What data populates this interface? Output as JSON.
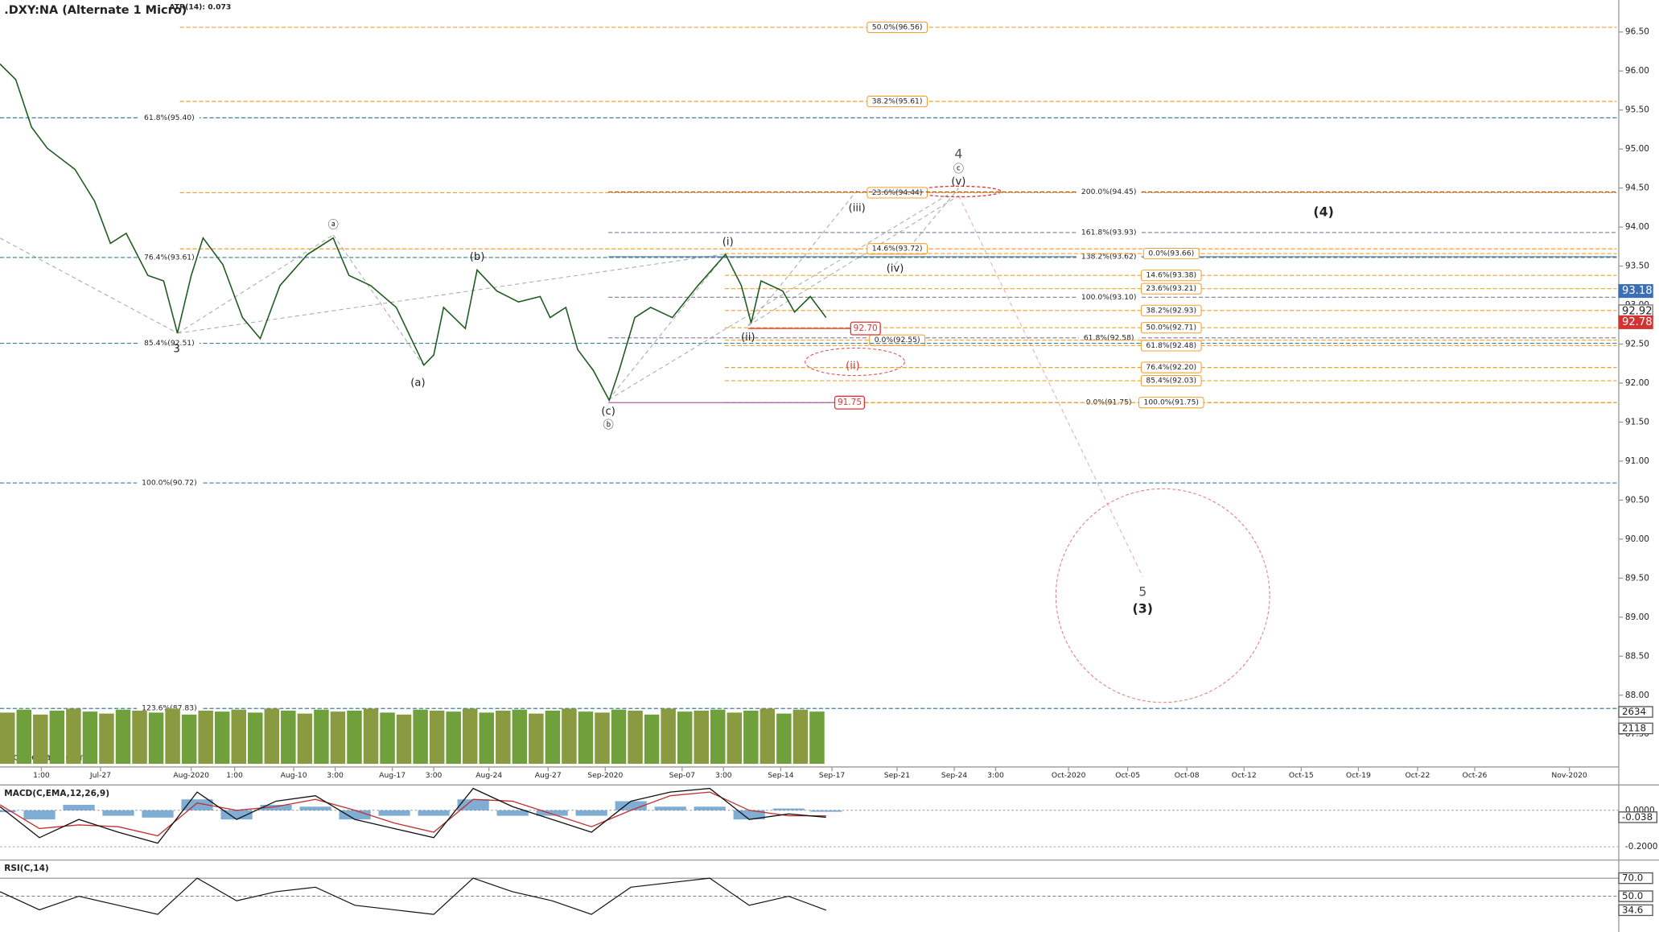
{
  "chart_data": {
    "type": "line",
    "title": ".DXY:NA (Alternate 1 Micro)",
    "indicator": "ATR(14): 0.073",
    "watermark": "motivewave.com",
    "xlim": [
      0,
      82
    ],
    "xticks": [
      {
        "value": 2.1,
        "label": "1:00"
      },
      {
        "value": 5.1,
        "label": "Jul-27"
      },
      {
        "value": 9.7,
        "label": "Aug-2020"
      },
      {
        "value": 11.9,
        "label": "1:00"
      },
      {
        "value": 14.9,
        "label": "Aug-10"
      },
      {
        "value": 17.0,
        "label": "3:00"
      },
      {
        "value": 19.9,
        "label": "Aug-17"
      },
      {
        "value": 22.0,
        "label": "3:00"
      },
      {
        "value": 24.8,
        "label": "Aug-24"
      },
      {
        "value": 27.8,
        "label": "Aug-27"
      },
      {
        "value": 30.7,
        "label": "Sep-2020"
      },
      {
        "value": 34.6,
        "label": "Sep-07"
      },
      {
        "value": 36.7,
        "label": "3:00"
      },
      {
        "value": 39.6,
        "label": "Sep-14"
      },
      {
        "value": 42.2,
        "label": "Sep-17"
      },
      {
        "value": 45.5,
        "label": "Sep-21"
      },
      {
        "value": 48.4,
        "label": "Sep-24"
      },
      {
        "value": 50.5,
        "label": "3:00"
      },
      {
        "value": 54.2,
        "label": "Oct-2020"
      },
      {
        "value": 57.2,
        "label": "Oct-05"
      },
      {
        "value": 60.2,
        "label": "Oct-08"
      },
      {
        "value": 63.1,
        "label": "Oct-12"
      },
      {
        "value": 66.0,
        "label": "Oct-15"
      },
      {
        "value": 68.9,
        "label": "Oct-19"
      },
      {
        "value": 71.9,
        "label": "Oct-22"
      },
      {
        "value": 74.8,
        "label": "Oct-26"
      },
      {
        "value": 79.6,
        "label": "Nov-2020"
      }
    ],
    "ylim": [
      87.08,
      96.91
    ],
    "yticks": [
      {
        "value": 87.5,
        "label": "87.50"
      },
      {
        "value": 88.0,
        "label": "88.00"
      },
      {
        "value": 88.5,
        "label": "88.50"
      },
      {
        "value": 89.0,
        "label": "89.00"
      },
      {
        "value": 89.5,
        "label": "89.50"
      },
      {
        "value": 90.0,
        "label": "90.00"
      },
      {
        "value": 90.5,
        "label": "90.50"
      },
      {
        "value": 91.0,
        "label": "91.00"
      },
      {
        "value": 91.5,
        "label": "91.50"
      },
      {
        "value": 92.0,
        "label": "92.00"
      },
      {
        "value": 92.5,
        "label": "92.50"
      },
      {
        "value": 93.0,
        "label": "93.00"
      },
      {
        "value": 93.5,
        "label": "93.50"
      },
      {
        "value": 94.0,
        "label": "94.00"
      },
      {
        "value": 94.5,
        "label": "94.50"
      },
      {
        "value": 95.0,
        "label": "95.00"
      },
      {
        "value": 95.5,
        "label": "95.50"
      },
      {
        "value": 96.0,
        "label": "96.00"
      },
      {
        "value": 96.5,
        "label": "96.50"
      }
    ],
    "series": [
      {
        "name": "DXY",
        "color": "#1f5a1f",
        "x": [
          0,
          0.8,
          1.6,
          2.4,
          3.8,
          4.8,
          5.6,
          6.4,
          7.5,
          8.3,
          9.0,
          9.7,
          10.3,
          11.3,
          12.3,
          13.2,
          14.2,
          15.6,
          16.9,
          17.7,
          18.8,
          20.1,
          21.5,
          22.0,
          22.5,
          23.6,
          24.2,
          25.2,
          26.3,
          27.4,
          27.9,
          28.7,
          29.3,
          30.1,
          30.9,
          31.4,
          32.2,
          33.0,
          34.1,
          35.4,
          36.8,
          37.6,
          38.1,
          38.6,
          39.7,
          40.3,
          41.1,
          41.9
        ],
        "values": [
          96.09,
          95.89,
          95.28,
          95.01,
          94.74,
          94.33,
          93.79,
          93.92,
          93.38,
          93.31,
          92.64,
          93.38,
          93.86,
          93.52,
          92.84,
          92.57,
          93.25,
          93.65,
          93.86,
          93.38,
          93.25,
          92.97,
          92.23,
          92.36,
          92.97,
          92.7,
          93.45,
          93.18,
          93.04,
          93.11,
          92.84,
          92.97,
          92.43,
          92.16,
          91.78,
          92.16,
          92.84,
          92.97,
          92.84,
          93.25,
          93.65,
          93.25,
          92.77,
          93.31,
          93.18,
          92.91,
          93.11,
          92.84
        ]
      }
    ],
    "fib_levels": [
      {
        "value": 96.56,
        "label": "50.0%(96.56)",
        "color": "#f0a030",
        "dash": true
      },
      {
        "value": 95.61,
        "label": "38.2%(95.61)",
        "color": "#f0a030",
        "dash": true
      },
      {
        "value": 95.4,
        "label": "61.8%(95.40)",
        "color": "#3d7ea6",
        "dash": true
      },
      {
        "value": 94.44,
        "label": "23.6%(94.44)",
        "color": "#f0a030",
        "dash": true
      },
      {
        "value": 94.45,
        "label": "200.0%(94.45)",
        "color": "#a0522d",
        "dash": true
      },
      {
        "value": 93.93,
        "label": "161.8%(93.93)",
        "color": "#8a8aa0",
        "dash": true
      },
      {
        "value": 93.72,
        "label": "14.6%(93.72)",
        "color": "#f0a030",
        "dash": true
      },
      {
        "value": 93.61,
        "label": "76.4%(93.61)",
        "color": "#3d7ea6",
        "dash": true
      },
      {
        "value": 93.62,
        "label": "138.2%(93.62)",
        "color": "#5a7a90",
        "dash": false
      },
      {
        "value": 93.66,
        "label": "0.0%(93.66)",
        "color": "#f0a030",
        "dash": true
      },
      {
        "value": 93.38,
        "label": "14.6%(93.38)",
        "color": "#f0a030",
        "dash": true
      },
      {
        "value": 93.21,
        "label": "23.6%(93.21)",
        "color": "#f0a030",
        "dash": true
      },
      {
        "value": 93.1,
        "label": "100.0%(93.10)",
        "color": "#8a8aa0",
        "dash": true
      },
      {
        "value": 92.93,
        "label": "38.2%(92.93)",
        "color": "#f0a030",
        "dash": true
      },
      {
        "value": 92.71,
        "label": "50.0%(92.71)",
        "color": "#f0a030",
        "dash": true
      },
      {
        "value": 92.58,
        "label": "61.8%(92.58)",
        "color": "#8a8aa0",
        "dash": true
      },
      {
        "value": 92.55,
        "label": "0.0%(92.55)",
        "color": "#f0a030",
        "dash": true
      },
      {
        "value": 92.51,
        "label": "85.4%(92.51)",
        "color": "#3d7ea6",
        "dash": true
      },
      {
        "value": 92.48,
        "label": "61.8%(92.48)",
        "color": "#f0a030",
        "dash": true
      },
      {
        "value": 92.2,
        "label": "76.4%(92.20)",
        "color": "#f0a030",
        "dash": true
      },
      {
        "value": 92.03,
        "label": "85.4%(92.03)",
        "color": "#f0a030",
        "dash": true
      },
      {
        "value": 91.75,
        "label": "0.0%(91.75)",
        "color": "#f0a030",
        "dash": true
      },
      {
        "value": 91.75,
        "label": "100.0%(91.75)",
        "color": "#f0a030",
        "dash": true
      },
      {
        "value": 90.72,
        "label": "100.0%(90.72)",
        "color": "#3d7ea6",
        "dash": true
      },
      {
        "value": 87.83,
        "label": "123.6%(87.83)",
        "color": "#3d7ea6",
        "dash": true
      }
    ],
    "price_markers": [
      {
        "value": 92.7,
        "label": "92.70"
      },
      {
        "value": 91.75,
        "label": "91.75"
      }
    ],
    "price_badges": [
      {
        "value": 93.18,
        "color": "#3b6fb6"
      },
      {
        "value": 92.92,
        "color": "#777777"
      },
      {
        "value": 92.78,
        "color": "#d33333"
      }
    ],
    "wave_labels": [
      "3",
      "ⓐ",
      "(a)",
      "(b)",
      "(c)",
      "ⓑ",
      "(i)",
      "(ii)",
      "(iii)",
      "(iv)",
      "(v)",
      "ⓒ",
      "4",
      "(ii)",
      "(4)",
      "5",
      "(3)"
    ],
    "volume": {
      "ylim": [
        0,
        2900
      ],
      "badges": [
        2634,
        2118
      ],
      "values": [
        2600,
        2750,
        2500,
        2700,
        2800,
        2650,
        2550,
        2750,
        2700,
        2600,
        2800,
        2500,
        2700,
        2650,
        2750,
        2600,
        2800,
        2700,
        2550,
        2750,
        2650,
        2700,
        2800,
        2600,
        2500,
        2750,
        2700,
        2650,
        2800,
        2600,
        2700,
        2750,
        2550,
        2700,
        2800,
        2650,
        2600,
        2750,
        2700,
        2500,
        2800,
        2650,
        2700,
        2750,
        2600,
        2700,
        2800,
        2550,
        2750,
        2650
      ]
    },
    "macd": {
      "title": "MACD(C,EMA,12,26,9)",
      "ylim": [
        -0.267,
        0.139
      ],
      "yticks": [
        {
          "value": 0,
          "label": "0.0000"
        },
        {
          "value": -0.2,
          "label": "-0.2000"
        }
      ],
      "x": [
        0,
        2,
        4,
        6,
        8,
        10,
        12,
        14,
        16,
        18,
        20,
        22,
        24,
        26,
        28,
        30,
        32,
        34,
        36,
        38,
        40,
        41.9
      ],
      "macd": [
        0.02,
        -0.15,
        -0.05,
        -0.12,
        -0.18,
        0.1,
        -0.05,
        0.05,
        0.08,
        -0.05,
        -0.1,
        -0.15,
        0.12,
        0.02,
        -0.05,
        -0.12,
        0.05,
        0.1,
        0.12,
        -0.05,
        -0.02,
        -0.038
      ],
      "signal": [
        0.03,
        -0.1,
        -0.08,
        -0.09,
        -0.14,
        0.04,
        0.0,
        0.02,
        0.06,
        0.0,
        -0.07,
        -0.12,
        0.06,
        0.05,
        -0.02,
        -0.09,
        0.0,
        0.08,
        0.1,
        0.0,
        -0.03,
        -0.03
      ],
      "histogram": [
        -0.01,
        -0.05,
        0.03,
        -0.03,
        -0.04,
        0.06,
        -0.05,
        0.03,
        0.02,
        -0.05,
        -0.03,
        -0.03,
        0.06,
        -0.03,
        -0.03,
        -0.03,
        0.05,
        0.02,
        0.02,
        -0.05,
        0.01,
        -0.008
      ],
      "macd_color": "#111111",
      "signal_color": "#c03030",
      "hist_color": "#4a8ac0"
    },
    "rsi": {
      "title": "RSI(C,14)",
      "ylim": [
        14,
        90
      ],
      "yticks": [
        {
          "value": 70,
          "label": "70.0"
        },
        {
          "value": 50,
          "label": "50.0"
        }
      ],
      "x": [
        0,
        2,
        4,
        6,
        8,
        10,
        12,
        14,
        16,
        18,
        20,
        22,
        24,
        26,
        28,
        30,
        32,
        34,
        36,
        38,
        40,
        41.9
      ],
      "values": [
        55,
        35,
        50,
        40,
        30,
        70,
        45,
        55,
        60,
        40,
        35,
        30,
        70,
        55,
        45,
        30,
        60,
        65,
        70,
        40,
        50,
        34.6
      ],
      "color": "#111111"
    }
  }
}
